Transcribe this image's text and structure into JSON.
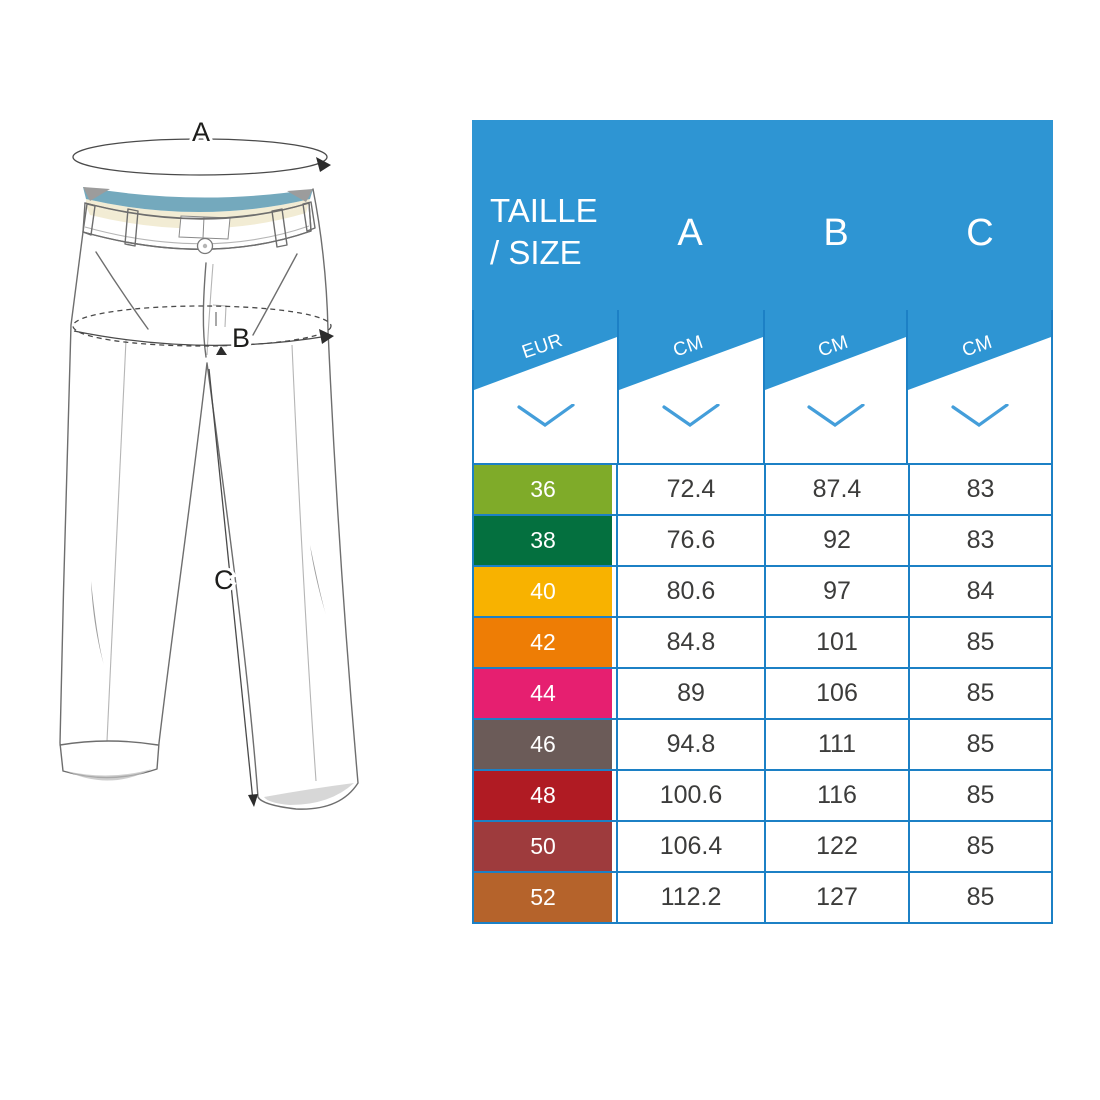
{
  "table": {
    "title": {
      "line1": "TAILLE",
      "line2": "/ SIZE"
    },
    "size_column": {
      "unit": "EUR"
    },
    "columns": [
      {
        "label": "A",
        "unit": "CM"
      },
      {
        "label": "B",
        "unit": "CM"
      },
      {
        "label": "C",
        "unit": "CM"
      }
    ],
    "rows": [
      {
        "size": "36",
        "color": "#7FAB29",
        "values": [
          "72.4",
          "87.4",
          "83"
        ]
      },
      {
        "size": "38",
        "color": "#04703F",
        "values": [
          "76.6",
          "92",
          "83"
        ]
      },
      {
        "size": "40",
        "color": "#F8B200",
        "values": [
          "80.6",
          "97",
          "84"
        ]
      },
      {
        "size": "42",
        "color": "#EE7D05",
        "values": [
          "84.8",
          "101",
          "85"
        ]
      },
      {
        "size": "44",
        "color": "#E61F70",
        "values": [
          "89",
          "106",
          "85"
        ]
      },
      {
        "size": "46",
        "color": "#6B5B58",
        "values": [
          "94.8",
          "111",
          "85"
        ]
      },
      {
        "size": "48",
        "color": "#B01B23",
        "values": [
          "100.6",
          "116",
          "85"
        ]
      },
      {
        "size": "50",
        "color": "#9E3B3D",
        "values": [
          "106.4",
          "122",
          "85"
        ]
      },
      {
        "size": "52",
        "color": "#B5632B",
        "values": [
          "112.2",
          "127",
          "85"
        ]
      }
    ]
  },
  "diagram": {
    "measure_labels": {
      "a": "A",
      "b": "B",
      "c": "C"
    }
  },
  "colors": {
    "header_blue": "#2E95D3",
    "grid_blue": "#1C80C5",
    "chevron_blue": "#449EDA",
    "value_text": "#3C3C3B",
    "size_text": "#FFFFFF",
    "lining_teal": "#74A9BD",
    "lining_cream": "#F2ECD4",
    "page_background": "#FFFFFF"
  }
}
